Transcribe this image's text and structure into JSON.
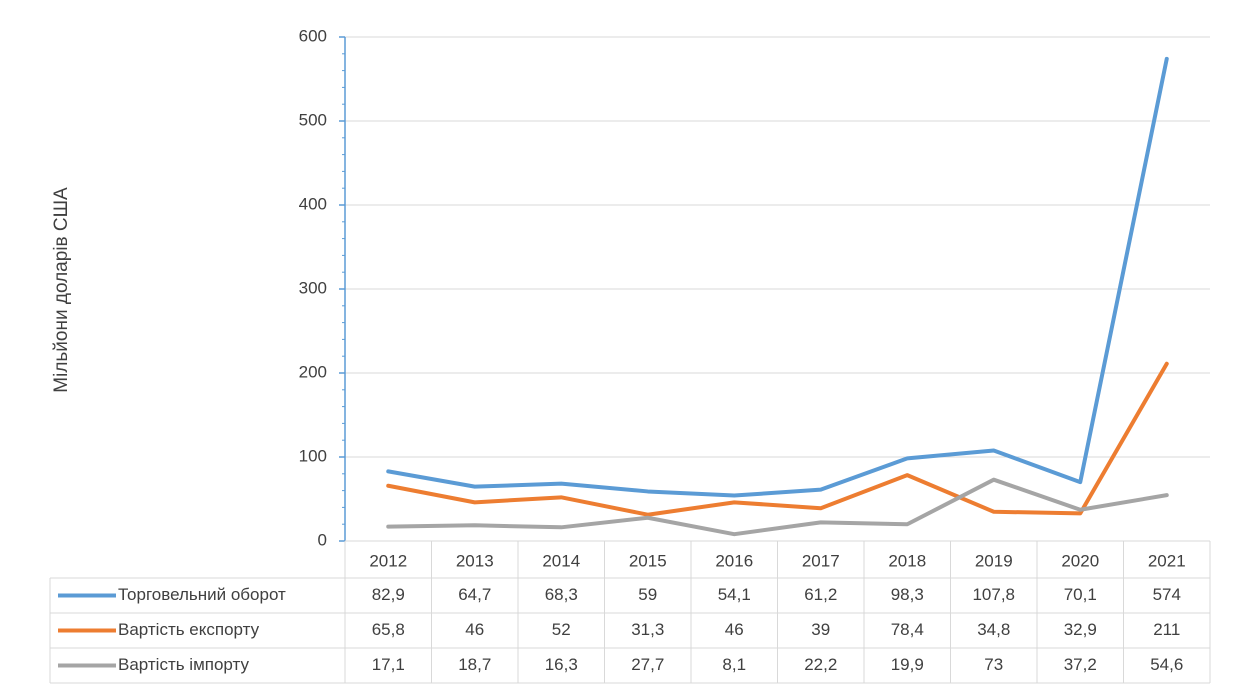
{
  "chart_data": {
    "type": "line",
    "y_label": "Мільйони доларів США",
    "categories": [
      "2012",
      "2013",
      "2014",
      "2015",
      "2016",
      "2017",
      "2018",
      "2019",
      "2020",
      "2021"
    ],
    "series": [
      {
        "name": "Торговельний оборот",
        "color": "#5b9bd5",
        "values": [
          82.9,
          64.7,
          68.3,
          59,
          54.1,
          61.2,
          98.3,
          107.8,
          70.1,
          574
        ],
        "value_labels": [
          "82,9",
          "64,7",
          "68,3",
          "59",
          "54,1",
          "61,2",
          "98,3",
          "107,8",
          "70,1",
          "574"
        ]
      },
      {
        "name": "Вартість експорту",
        "color": "#ed7d31",
        "values": [
          65.8,
          46,
          52,
          31.3,
          46,
          39,
          78.4,
          34.8,
          32.9,
          211
        ],
        "value_labels": [
          "65,8",
          "46",
          "52",
          "31,3",
          "46",
          "39",
          "78,4",
          "34,8",
          "32,9",
          "211"
        ]
      },
      {
        "name": "Вартість імпорту",
        "color": "#a5a5a5",
        "values": [
          17.1,
          18.7,
          16.3,
          27.7,
          8.1,
          22.2,
          19.9,
          73,
          37.2,
          54.6
        ],
        "value_labels": [
          "17,1",
          "18,7",
          "16,3",
          "27,7",
          "8,1",
          "22,2",
          "19,9",
          "73",
          "37,2",
          "54,6"
        ]
      }
    ],
    "ylim": [
      0,
      600
    ],
    "yticks": [
      0,
      100,
      200,
      300,
      400,
      500,
      600
    ],
    "grid": true
  }
}
